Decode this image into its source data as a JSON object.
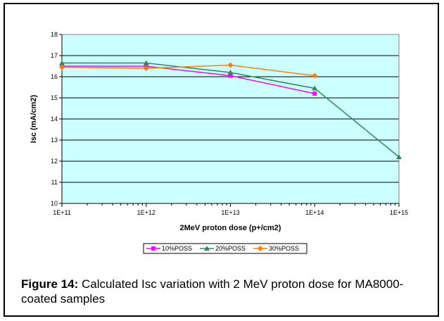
{
  "chart_data": {
    "type": "line",
    "xscale": "log",
    "xlim": [
      100000000000.0,
      1000000000000000.0
    ],
    "ylim": [
      10,
      18
    ],
    "xlabel": "2MeV proton dose (p+/cm2)",
    "ylabel": "Isc (mA/cm2)",
    "x_tick_labels": [
      "1E+11",
      "1E+12",
      "1E+13",
      "1E+14",
      "1E+15"
    ],
    "y_tick_labels": [
      "10",
      "11",
      "12",
      "13",
      "14",
      "15",
      "16",
      "17",
      "18"
    ],
    "plot_background": "#ccffff",
    "grid": "horizontal",
    "legend_position": "bottom",
    "series": [
      {
        "name": "10%POSS",
        "color": "#ff00ff",
        "marker": "square",
        "x": [
          100000000000.0,
          1000000000000.0,
          10000000000000.0,
          100000000000000.0
        ],
        "y": [
          16.5,
          16.5,
          16.05,
          15.2
        ]
      },
      {
        "name": "20%POSS",
        "color": "#2e8b57",
        "marker": "triangle",
        "x": [
          100000000000.0,
          1000000000000.0,
          10000000000000.0,
          100000000000000.0,
          1000000000000000.0
        ],
        "y": [
          16.65,
          16.65,
          16.2,
          15.45,
          12.2
        ]
      },
      {
        "name": "30%POSS",
        "color": "#ff8000",
        "marker": "diamond",
        "x": [
          100000000000.0,
          1000000000000.0,
          10000000000000.0,
          100000000000000.0
        ],
        "y": [
          16.45,
          16.4,
          16.55,
          16.05
        ]
      }
    ]
  },
  "caption": {
    "label": "Figure 14:",
    "text": " Calculated Isc variation with 2 MeV proton dose for MA8000-coated samples"
  }
}
